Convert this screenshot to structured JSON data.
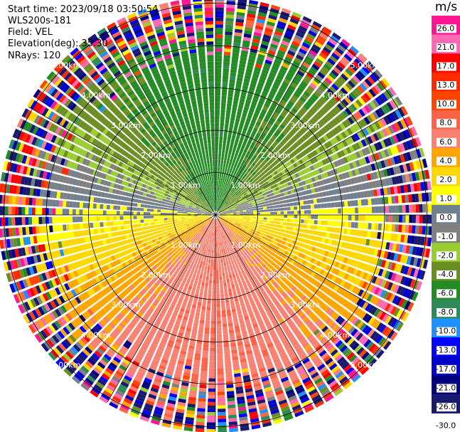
{
  "info": {
    "start_time": "Start time: 2023/09/18 03:50:54",
    "instrument": "WLS200s-181",
    "field": "Field: VEL",
    "elevation": "Elevation(deg): 35.30",
    "nrays": "NRays: 120"
  },
  "chart_data": {
    "type": "heatmap",
    "projection": "polar-ppi",
    "field": "VEL",
    "n_rays": 120,
    "elevation_deg": 35.3,
    "range_rings_km": [
      1,
      2,
      3,
      4,
      5
    ],
    "range_ring_labels": [
      "1.00km",
      "2.00km",
      "3.00km",
      "4.00km",
      "5.00km"
    ],
    "spoke_angles_deg": [
      0,
      30,
      60,
      90,
      120,
      150,
      180,
      210,
      240,
      270,
      300,
      330
    ],
    "colorbar": {
      "unit": "m/s",
      "tick_labels": [
        "26.0",
        "21.0",
        "17.0",
        "13.0",
        "10.0",
        "8.0",
        "6.0",
        "4.0",
        "2.0",
        "1.0",
        "0.0",
        "-1.0",
        "-2.0",
        "-4.0",
        "-6.0",
        "-8.0",
        "-10.0",
        "-13.0",
        "-17.0",
        "-21.0",
        "-26.0",
        "-30.0"
      ],
      "bins": [
        {
          "min": 26,
          "color": "#ff1493"
        },
        {
          "min": 21,
          "color": "#ff69b4"
        },
        {
          "min": 17,
          "color": "#ff0000"
        },
        {
          "min": 13,
          "color": "#ff2a00"
        },
        {
          "min": 10,
          "color": "#ff4500"
        },
        {
          "min": 8,
          "color": "#ff6347"
        },
        {
          "min": 6,
          "color": "#fa8072"
        },
        {
          "min": 4,
          "color": "#ffa500"
        },
        {
          "min": 2,
          "color": "#ffd700"
        },
        {
          "min": 1,
          "color": "#ffff00"
        },
        {
          "min": 0,
          "color": "#708090"
        },
        {
          "min": -1,
          "color": "#808080"
        },
        {
          "min": -2,
          "color": "#9acd32"
        },
        {
          "min": -4,
          "color": "#6b8e23"
        },
        {
          "min": -6,
          "color": "#228b22"
        },
        {
          "min": -8,
          "color": "#2e8b57"
        },
        {
          "min": -10,
          "color": "#1e90ff"
        },
        {
          "min": -13,
          "color": "#0000ff"
        },
        {
          "min": -17,
          "color": "#0000cd"
        },
        {
          "min": -21,
          "color": "#000080"
        },
        {
          "min": -26,
          "color": "#191970"
        }
      ]
    }
  }
}
